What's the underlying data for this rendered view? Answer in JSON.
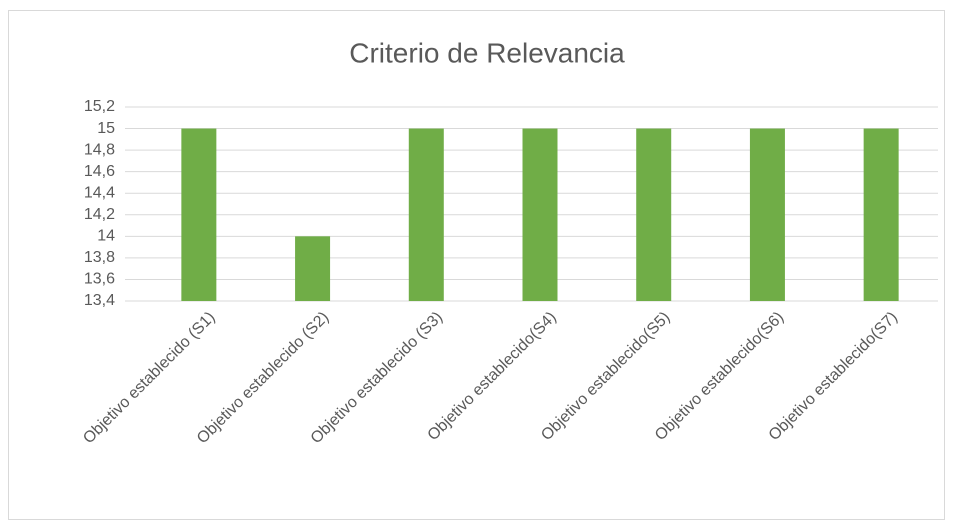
{
  "chart_data": {
    "type": "bar",
    "title": "Criterio de Relevancia",
    "categories": [
      "Objetivo establecido (S1)",
      "Objetivo establecido (S2)",
      "Objetivo establecido (S3)",
      "Objetivo establecido(S4)",
      "Objetivo establecido(S5)",
      "Objetivo establecido(S6)",
      "Objetivo establecido(S7)"
    ],
    "values": [
      15,
      14,
      15,
      15,
      15,
      15,
      15
    ],
    "color": "#70ad47",
    "ylim": [
      13.4,
      15.2
    ],
    "yticks": [
      {
        "value": 13.4,
        "label": "13,4"
      },
      {
        "value": 13.6,
        "label": "13,6"
      },
      {
        "value": 13.8,
        "label": "13,8"
      },
      {
        "value": 14,
        "label": "14"
      },
      {
        "value": 14.2,
        "label": "14,2"
      },
      {
        "value": 14.4,
        "label": "14,4"
      },
      {
        "value": 14.6,
        "label": "14,6"
      },
      {
        "value": 14.8,
        "label": "14,8"
      },
      {
        "value": 15,
        "label": "15"
      },
      {
        "value": 15.2,
        "label": "15,2"
      }
    ],
    "grid": true
  }
}
